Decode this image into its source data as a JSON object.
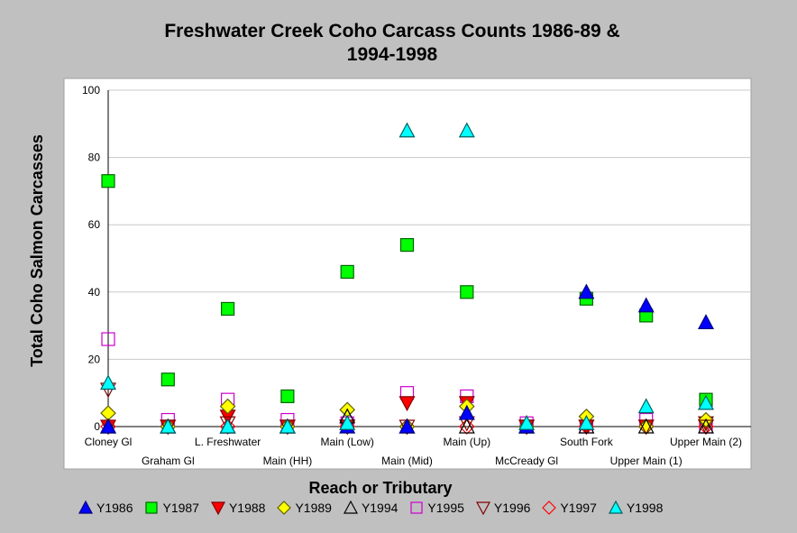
{
  "chart_data": {
    "type": "scatter",
    "title_lines": [
      "Freshwater Creek Coho Carcass Counts 1986-89 &",
      "1994-1998"
    ],
    "xlabel": "Reach or Tributary",
    "ylabel": "Total Coho Salmon Carcasses",
    "ylim": [
      0,
      100
    ],
    "yticks": [
      0,
      20,
      40,
      60,
      80,
      100
    ],
    "grid": true,
    "legend_position": "bottom",
    "categories": [
      "Cloney Gl",
      "Graham Gl",
      "L. Freshwater",
      "Main (HH)",
      "Main (Low)",
      "Main (Mid)",
      "Main (Up)",
      "McCready Gl",
      "South Fork",
      "Upper Main (1)",
      "Upper Main (2)"
    ],
    "series": [
      {
        "name": "Y1986",
        "marker": "triangle-up",
        "fill": "#0000ff",
        "stroke": "#000080",
        "values": [
          0,
          0,
          0,
          0,
          0,
          0,
          4,
          0,
          40,
          36,
          31
        ]
      },
      {
        "name": "Y1987",
        "marker": "square",
        "fill": "#00ff00",
        "stroke": "#006400",
        "values": [
          73,
          14,
          35,
          9,
          46,
          54,
          40,
          0,
          38,
          33,
          8
        ]
      },
      {
        "name": "Y1988",
        "marker": "triangle-down",
        "fill": "#ff0000",
        "stroke": "#800000",
        "values": [
          0,
          0,
          3,
          0,
          0,
          7,
          7,
          0,
          0,
          0,
          1
        ]
      },
      {
        "name": "Y1989",
        "marker": "diamond",
        "fill": "#ffff00",
        "stroke": "#606000",
        "values": [
          4,
          0,
          6,
          0,
          5,
          0,
          6,
          0,
          3,
          0,
          2
        ]
      },
      {
        "name": "Y1994",
        "marker": "triangle-up",
        "fill": "none",
        "stroke": "#000000",
        "values": [
          0,
          0,
          0,
          0,
          3,
          0,
          0,
          0,
          0,
          0,
          0
        ]
      },
      {
        "name": "Y1995",
        "marker": "square",
        "fill": "none",
        "stroke": "#cc00cc",
        "values": [
          26,
          2,
          8,
          2,
          1,
          10,
          9,
          1,
          0,
          2,
          0
        ]
      },
      {
        "name": "Y1996",
        "marker": "triangle-down",
        "fill": "none",
        "stroke": "#800000",
        "values": [
          11,
          0,
          1,
          0,
          0,
          0,
          1,
          0,
          0,
          0,
          0
        ]
      },
      {
        "name": "Y1997",
        "marker": "diamond",
        "fill": "none",
        "stroke": "#ff0000",
        "values": [
          0,
          0,
          0,
          0,
          0,
          0,
          0,
          0,
          0,
          0,
          0
        ]
      },
      {
        "name": "Y1998",
        "marker": "triangle-up",
        "fill": "#00ffff",
        "stroke": "#006060",
        "values": [
          13,
          0,
          0,
          0,
          1,
          88,
          88,
          1,
          1,
          6,
          7
        ]
      }
    ]
  }
}
